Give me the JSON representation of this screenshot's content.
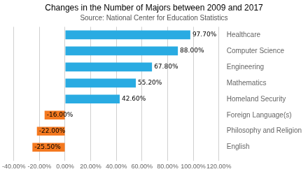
{
  "chart_data": {
    "type": "bar",
    "orientation": "horizontal",
    "title": "Changes in the Number of Majors between 2009 and 2017",
    "subtitle": "Source: National Center for Education Statistics",
    "categories": [
      "English",
      "Philosophy and Religion",
      "Foreign Language(s)",
      "Homeland Security",
      "Mathematics",
      "Engineering",
      "Computer Science",
      "Healthcare"
    ],
    "values": [
      -0.255,
      -0.22,
      -0.16,
      0.426,
      0.552,
      0.678,
      0.88,
      0.977
    ],
    "value_labels": [
      "-25.50%",
      "-22.00%",
      "-16.00%",
      "42.60%",
      "55.20%",
      "67.80%",
      "88.00%",
      "97.70%"
    ],
    "colors": [
      "#f47920",
      "#f47920",
      "#f47920",
      "#29abe2",
      "#29abe2",
      "#29abe2",
      "#29abe2",
      "#29abe2"
    ],
    "xlim": [
      -0.4,
      1.2
    ],
    "xticks": [
      {
        "value": -0.4,
        "label": "-40.00%"
      },
      {
        "value": -0.2,
        "label": "-20.00%"
      },
      {
        "value": 0.0,
        "label": "0.00%"
      },
      {
        "value": 0.2,
        "label": "20.00%"
      },
      {
        "value": 0.4,
        "label": "40.00%"
      },
      {
        "value": 0.6,
        "label": "60.00%"
      },
      {
        "value": 0.8,
        "label": "80.00%"
      },
      {
        "value": 1.0,
        "label": "100.00%"
      },
      {
        "value": 1.2,
        "label": "120.00%"
      }
    ],
    "grid": true,
    "data_labels": true
  }
}
